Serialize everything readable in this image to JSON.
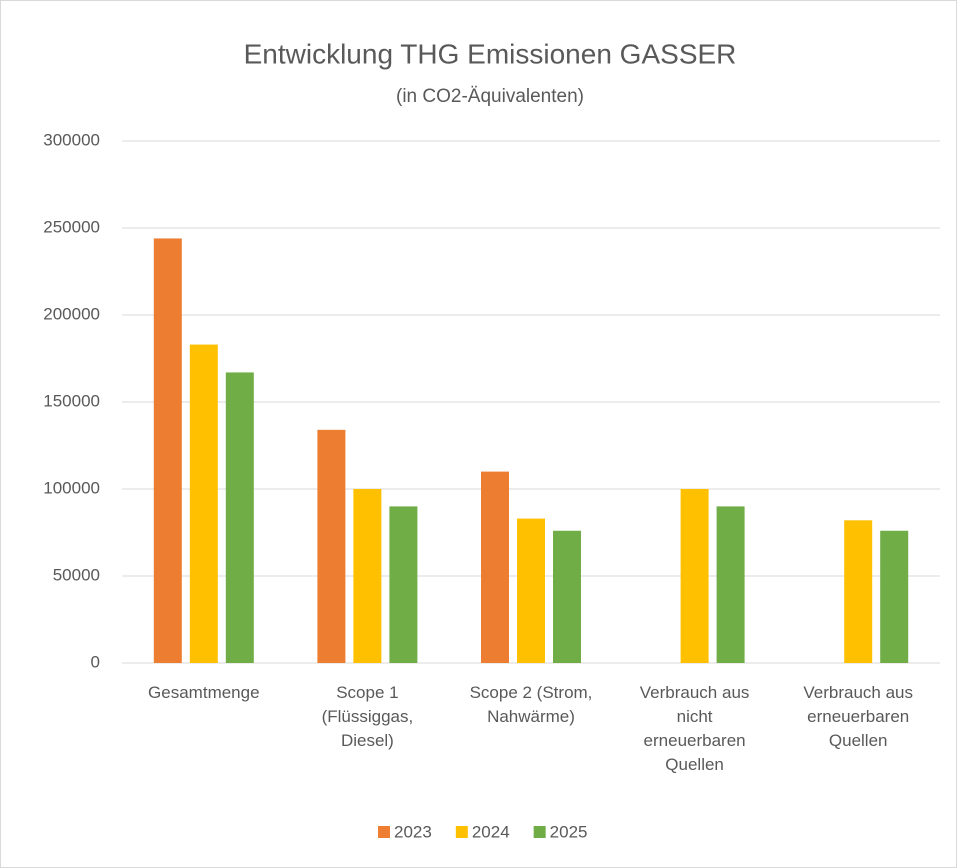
{
  "chart_data": {
    "type": "bar",
    "title": "Entwicklung THG Emissionen GASSER",
    "subtitle": "(in CO2-Äquivalenten)",
    "categories": [
      "Gesamtmenge",
      "Scope 1\n(Flüssiggas,\nDiesel)",
      "Scope 2 (Strom,\nNahwärme)",
      "Verbrauch aus\nnicht\nerneuerbaren\nQuellen",
      "Verbrauch aus\nerneuerbaren\nQuellen"
    ],
    "series": [
      {
        "name": "2023",
        "color": "#ed7d31",
        "values": [
          244000,
          134000,
          110000,
          null,
          null
        ]
      },
      {
        "name": "2024",
        "color": "#ffc000",
        "values": [
          183000,
          100000,
          83000,
          100000,
          82000
        ]
      },
      {
        "name": "2025",
        "color": "#70ad47",
        "values": [
          167000,
          90000,
          76000,
          90000,
          76000
        ]
      }
    ],
    "ylim": [
      0,
      300000
    ],
    "yticks": [
      0,
      50000,
      100000,
      150000,
      200000,
      250000,
      300000
    ],
    "grid": true,
    "legend": "bottom"
  }
}
